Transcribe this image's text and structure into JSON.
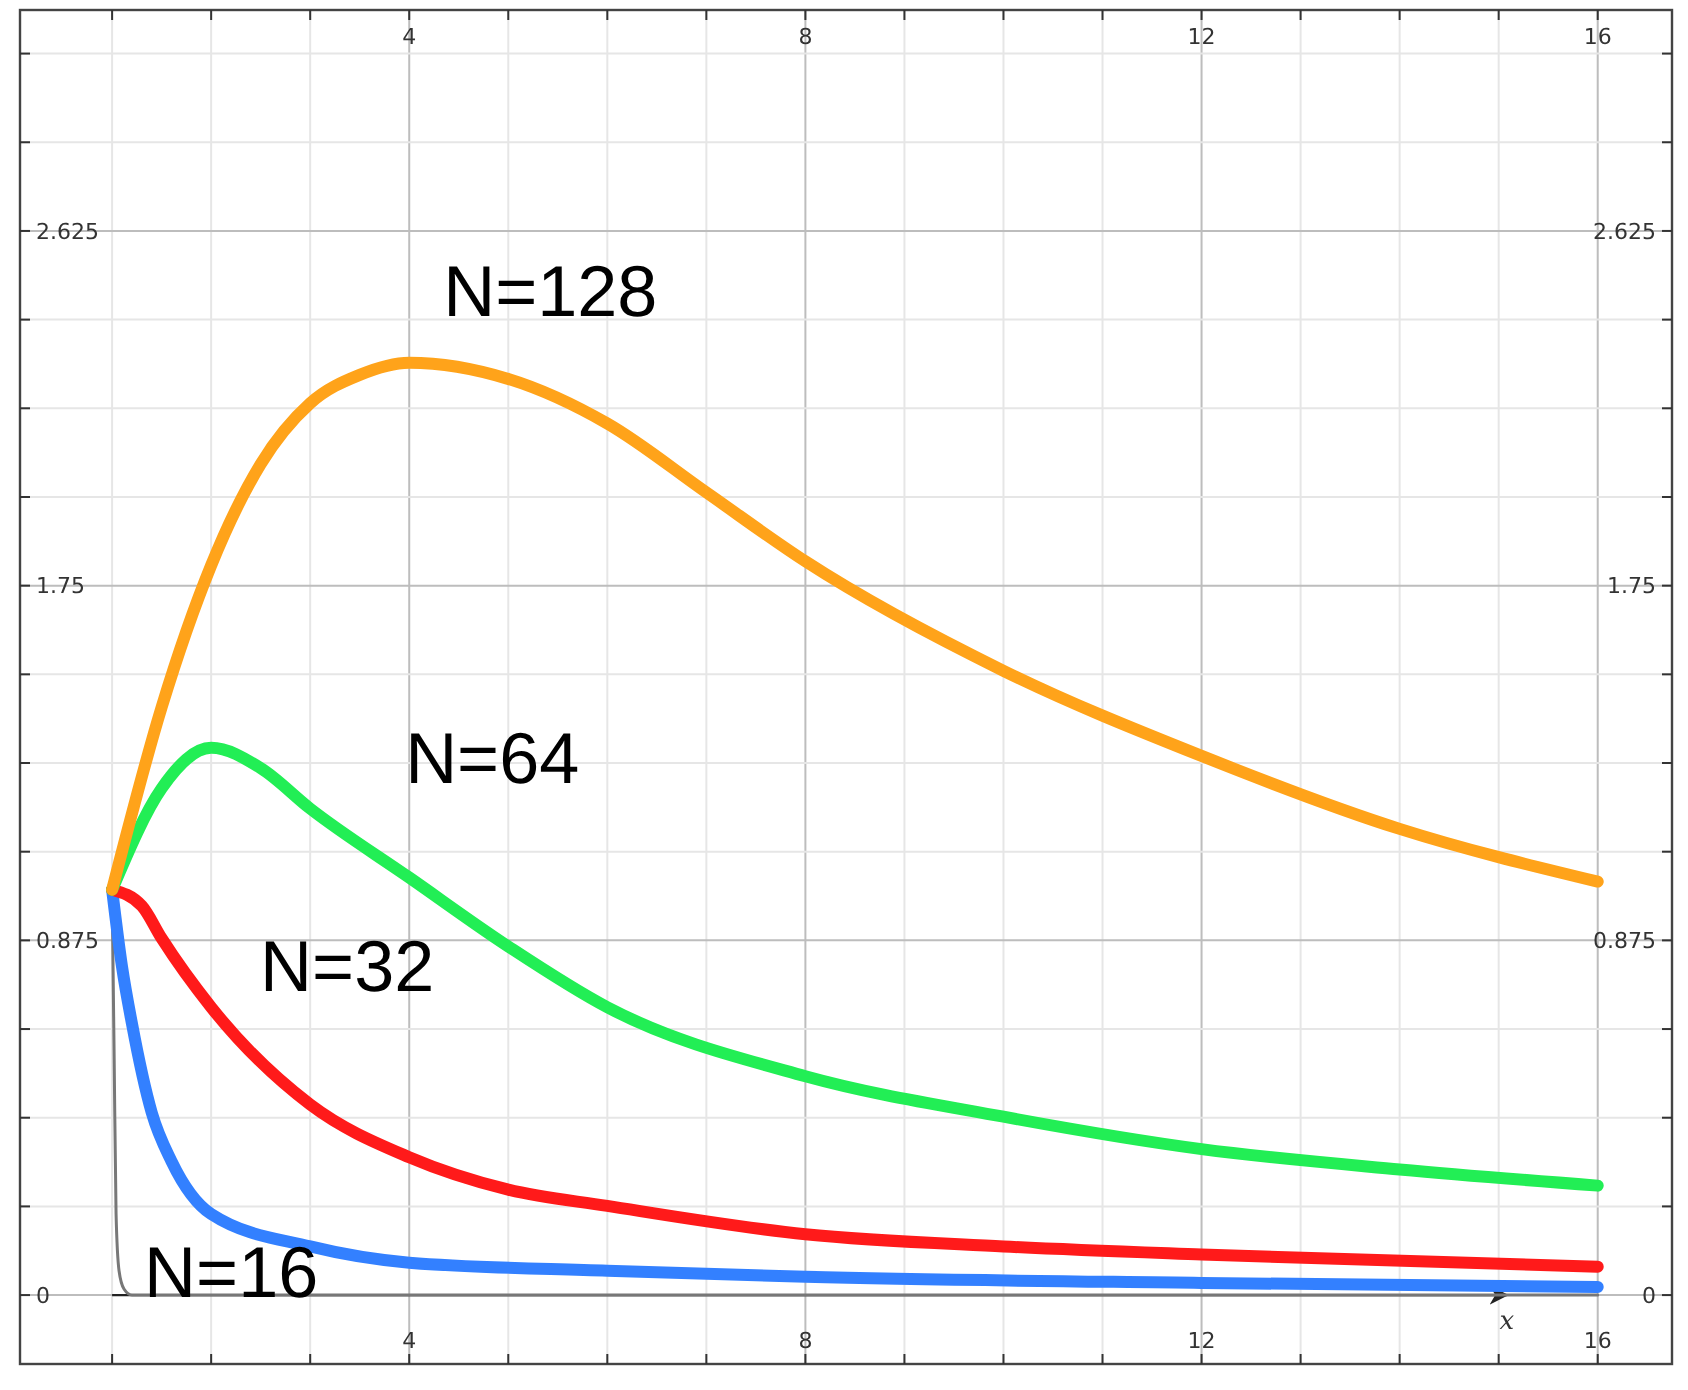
{
  "chart_data": {
    "type": "line",
    "xlabel": "x",
    "xlim": [
      0.07,
      16.75
    ],
    "ylim": [
      -0.17,
      3.17
    ],
    "x2lim": [
      0.07,
      16.75
    ],
    "y2lim": [
      -0.17,
      3.17
    ],
    "xticks": [
      {
        "value": 1,
        "label": null
      },
      {
        "value": 2,
        "label": null
      },
      {
        "value": 3,
        "label": null
      },
      4,
      {
        "value": 5,
        "label": null
      },
      {
        "value": 6,
        "label": null
      },
      {
        "value": 7,
        "label": null
      },
      8,
      {
        "value": 9,
        "label": null
      },
      {
        "value": 10,
        "label": null
      },
      {
        "value": 11,
        "label": null
      },
      12,
      {
        "value": 13,
        "label": null
      },
      {
        "value": 14,
        "label": null
      },
      {
        "value": 15,
        "label": null
      },
      16
    ],
    "x2ticks": [
      {
        "value": 1,
        "label": null
      },
      {
        "value": 2,
        "label": null
      },
      {
        "value": 3,
        "label": null
      },
      4,
      {
        "value": 5,
        "label": null
      },
      {
        "value": 6,
        "label": null
      },
      {
        "value": 7,
        "label": null
      },
      8,
      {
        "value": 9,
        "label": null
      },
      {
        "value": 10,
        "label": null
      },
      {
        "value": 11,
        "label": null
      },
      12,
      {
        "value": 13,
        "label": null
      },
      {
        "value": 14,
        "label": null
      },
      {
        "value": 15,
        "label": null
      },
      16
    ],
    "yticks": [
      0,
      {
        "value": 0.21875,
        "label": null
      },
      {
        "value": 0.4375,
        "label": null
      },
      {
        "value": 0.65625,
        "label": null
      },
      0.875,
      {
        "value": 1.09375,
        "label": null
      },
      {
        "value": 1.3125,
        "label": null
      },
      {
        "value": 1.53125,
        "label": null
      },
      1.75,
      {
        "value": 1.96875,
        "label": null
      },
      {
        "value": 2.1875,
        "label": null
      },
      {
        "value": 2.40625,
        "label": null
      },
      2.625,
      {
        "value": 2.84375,
        "label": null
      },
      {
        "value": 3.0625,
        "label": null
      }
    ],
    "y2ticks": [
      0,
      {
        "value": 0.21875,
        "label": null
      },
      {
        "value": 0.4375,
        "label": null
      },
      {
        "value": 0.65625,
        "label": null
      },
      0.875,
      {
        "value": 1.09375,
        "label": null
      },
      {
        "value": 1.3125,
        "label": null
      },
      {
        "value": 1.53125,
        "label": null
      },
      1.75,
      {
        "value": 1.96875,
        "label": null
      },
      {
        "value": 2.1875,
        "label": null
      },
      {
        "value": 2.40625,
        "label": null
      },
      2.625,
      {
        "value": 2.84375,
        "label": null
      },
      {
        "value": 3.0625,
        "label": null
      }
    ],
    "grid": true,
    "marker": "none",
    "line_style": "solid",
    "series": [
      {
        "color": "#777777",
        "x": [
          1,
          1.02,
          1.04,
          1.07,
          1.12,
          1.2,
          16
        ],
        "values": [
          1,
          0.6,
          0.2,
          0.06,
          0.015,
          0,
          0
        ]
      },
      {
        "name": "N=16",
        "color": "#3380ff",
        "x": [
          1,
          1.1,
          1.2,
          1.4,
          1.6,
          2,
          3,
          4,
          6,
          8,
          12,
          16
        ],
        "values": [
          1,
          0.81,
          0.67,
          0.45,
          0.33,
          0.2,
          0.12,
          0.08,
          0.06,
          0.045,
          0.03,
          0.02
        ]
      },
      {
        "name": "N=32",
        "color": "#ff1a1a",
        "x": [
          1,
          1.3,
          1.5,
          2,
          3,
          4,
          5,
          6,
          8,
          10,
          12,
          16
        ],
        "values": [
          1,
          0.96,
          0.88,
          0.71,
          0.47,
          0.34,
          0.26,
          0.22,
          0.15,
          0.12,
          0.1,
          0.07
        ]
      },
      {
        "name": "N=64",
        "color": "#22ee55",
        "x": [
          1,
          1.5,
          2,
          2.5,
          3,
          4,
          5,
          6,
          8,
          10,
          12,
          14,
          16
        ],
        "values": [
          1,
          1.25,
          1.35,
          1.3,
          1.2,
          1.03,
          0.86,
          0.71,
          0.54,
          0.44,
          0.36,
          0.31,
          0.27
        ]
      },
      {
        "name": "N=128",
        "color": "#ffa31a",
        "x": [
          1,
          1.5,
          2,
          2.5,
          3,
          3.5,
          4,
          5,
          6,
          7,
          8,
          10,
          12,
          14,
          16
        ],
        "values": [
          1,
          1.45,
          1.8,
          2.05,
          2.2,
          2.27,
          2.3,
          2.26,
          2.15,
          1.98,
          1.81,
          1.54,
          1.33,
          1.15,
          1.02
        ]
      }
    ]
  }
}
